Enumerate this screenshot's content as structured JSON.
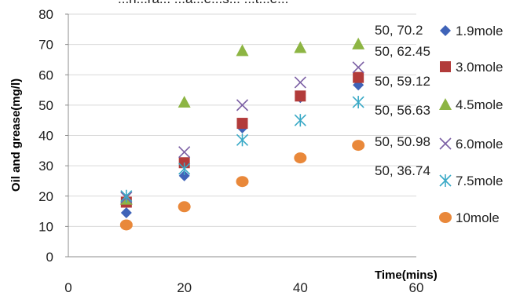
{
  "top_caption_fragment": "...h...ra... ...a...e...s... ...t...e...",
  "chart_data": {
    "type": "scatter",
    "xlabel": "Time(mins)",
    "ylabel": "Oil and grease(mg/l)",
    "xlim": [
      0,
      60
    ],
    "ylim": [
      0,
      80
    ],
    "xticks": [
      0,
      20,
      40,
      60
    ],
    "yticks": [
      0,
      10,
      20,
      30,
      40,
      50,
      60,
      70,
      80
    ],
    "grid": "horizontal",
    "legend_position": "right",
    "series": [
      {
        "name": "1.9mole",
        "marker": "diamond",
        "color": "#3f63b8",
        "x": [
          10,
          20,
          30,
          40,
          50
        ],
        "y": [
          14.5,
          26.7,
          42.5,
          52.5,
          56.63
        ]
      },
      {
        "name": "3.0mole",
        "marker": "square",
        "color": "#b23b3a",
        "x": [
          10,
          20,
          30,
          40,
          50
        ],
        "y": [
          18,
          31,
          44,
          53,
          59.12
        ]
      },
      {
        "name": "4.5mole",
        "marker": "triangle",
        "color": "#8db543",
        "x": [
          10,
          20,
          30,
          40,
          50
        ],
        "y": [
          19,
          51,
          68,
          69,
          70.2
        ]
      },
      {
        "name": "6.0mole",
        "marker": "x",
        "color": "#7b5fa4",
        "x": [
          10,
          20,
          30,
          40,
          50
        ],
        "y": [
          19.5,
          34.5,
          50,
          57.5,
          62.45
        ]
      },
      {
        "name": "7.5mole",
        "marker": "asterisk",
        "color": "#39a9c6",
        "x": [
          10,
          20,
          30,
          40,
          50
        ],
        "y": [
          20,
          29,
          38.5,
          45,
          50.98
        ]
      },
      {
        "name": "10mole",
        "marker": "circle",
        "color": "#e9883a",
        "x": [
          10,
          20,
          30,
          40,
          50
        ],
        "y": [
          10.5,
          16.5,
          24.8,
          32.6,
          36.74
        ]
      }
    ],
    "annotations": [
      "50, 70.2",
      "50, 62.45",
      "50, 59.12",
      "50, 56.63",
      "50, 50.98",
      "50, 36.74"
    ]
  }
}
